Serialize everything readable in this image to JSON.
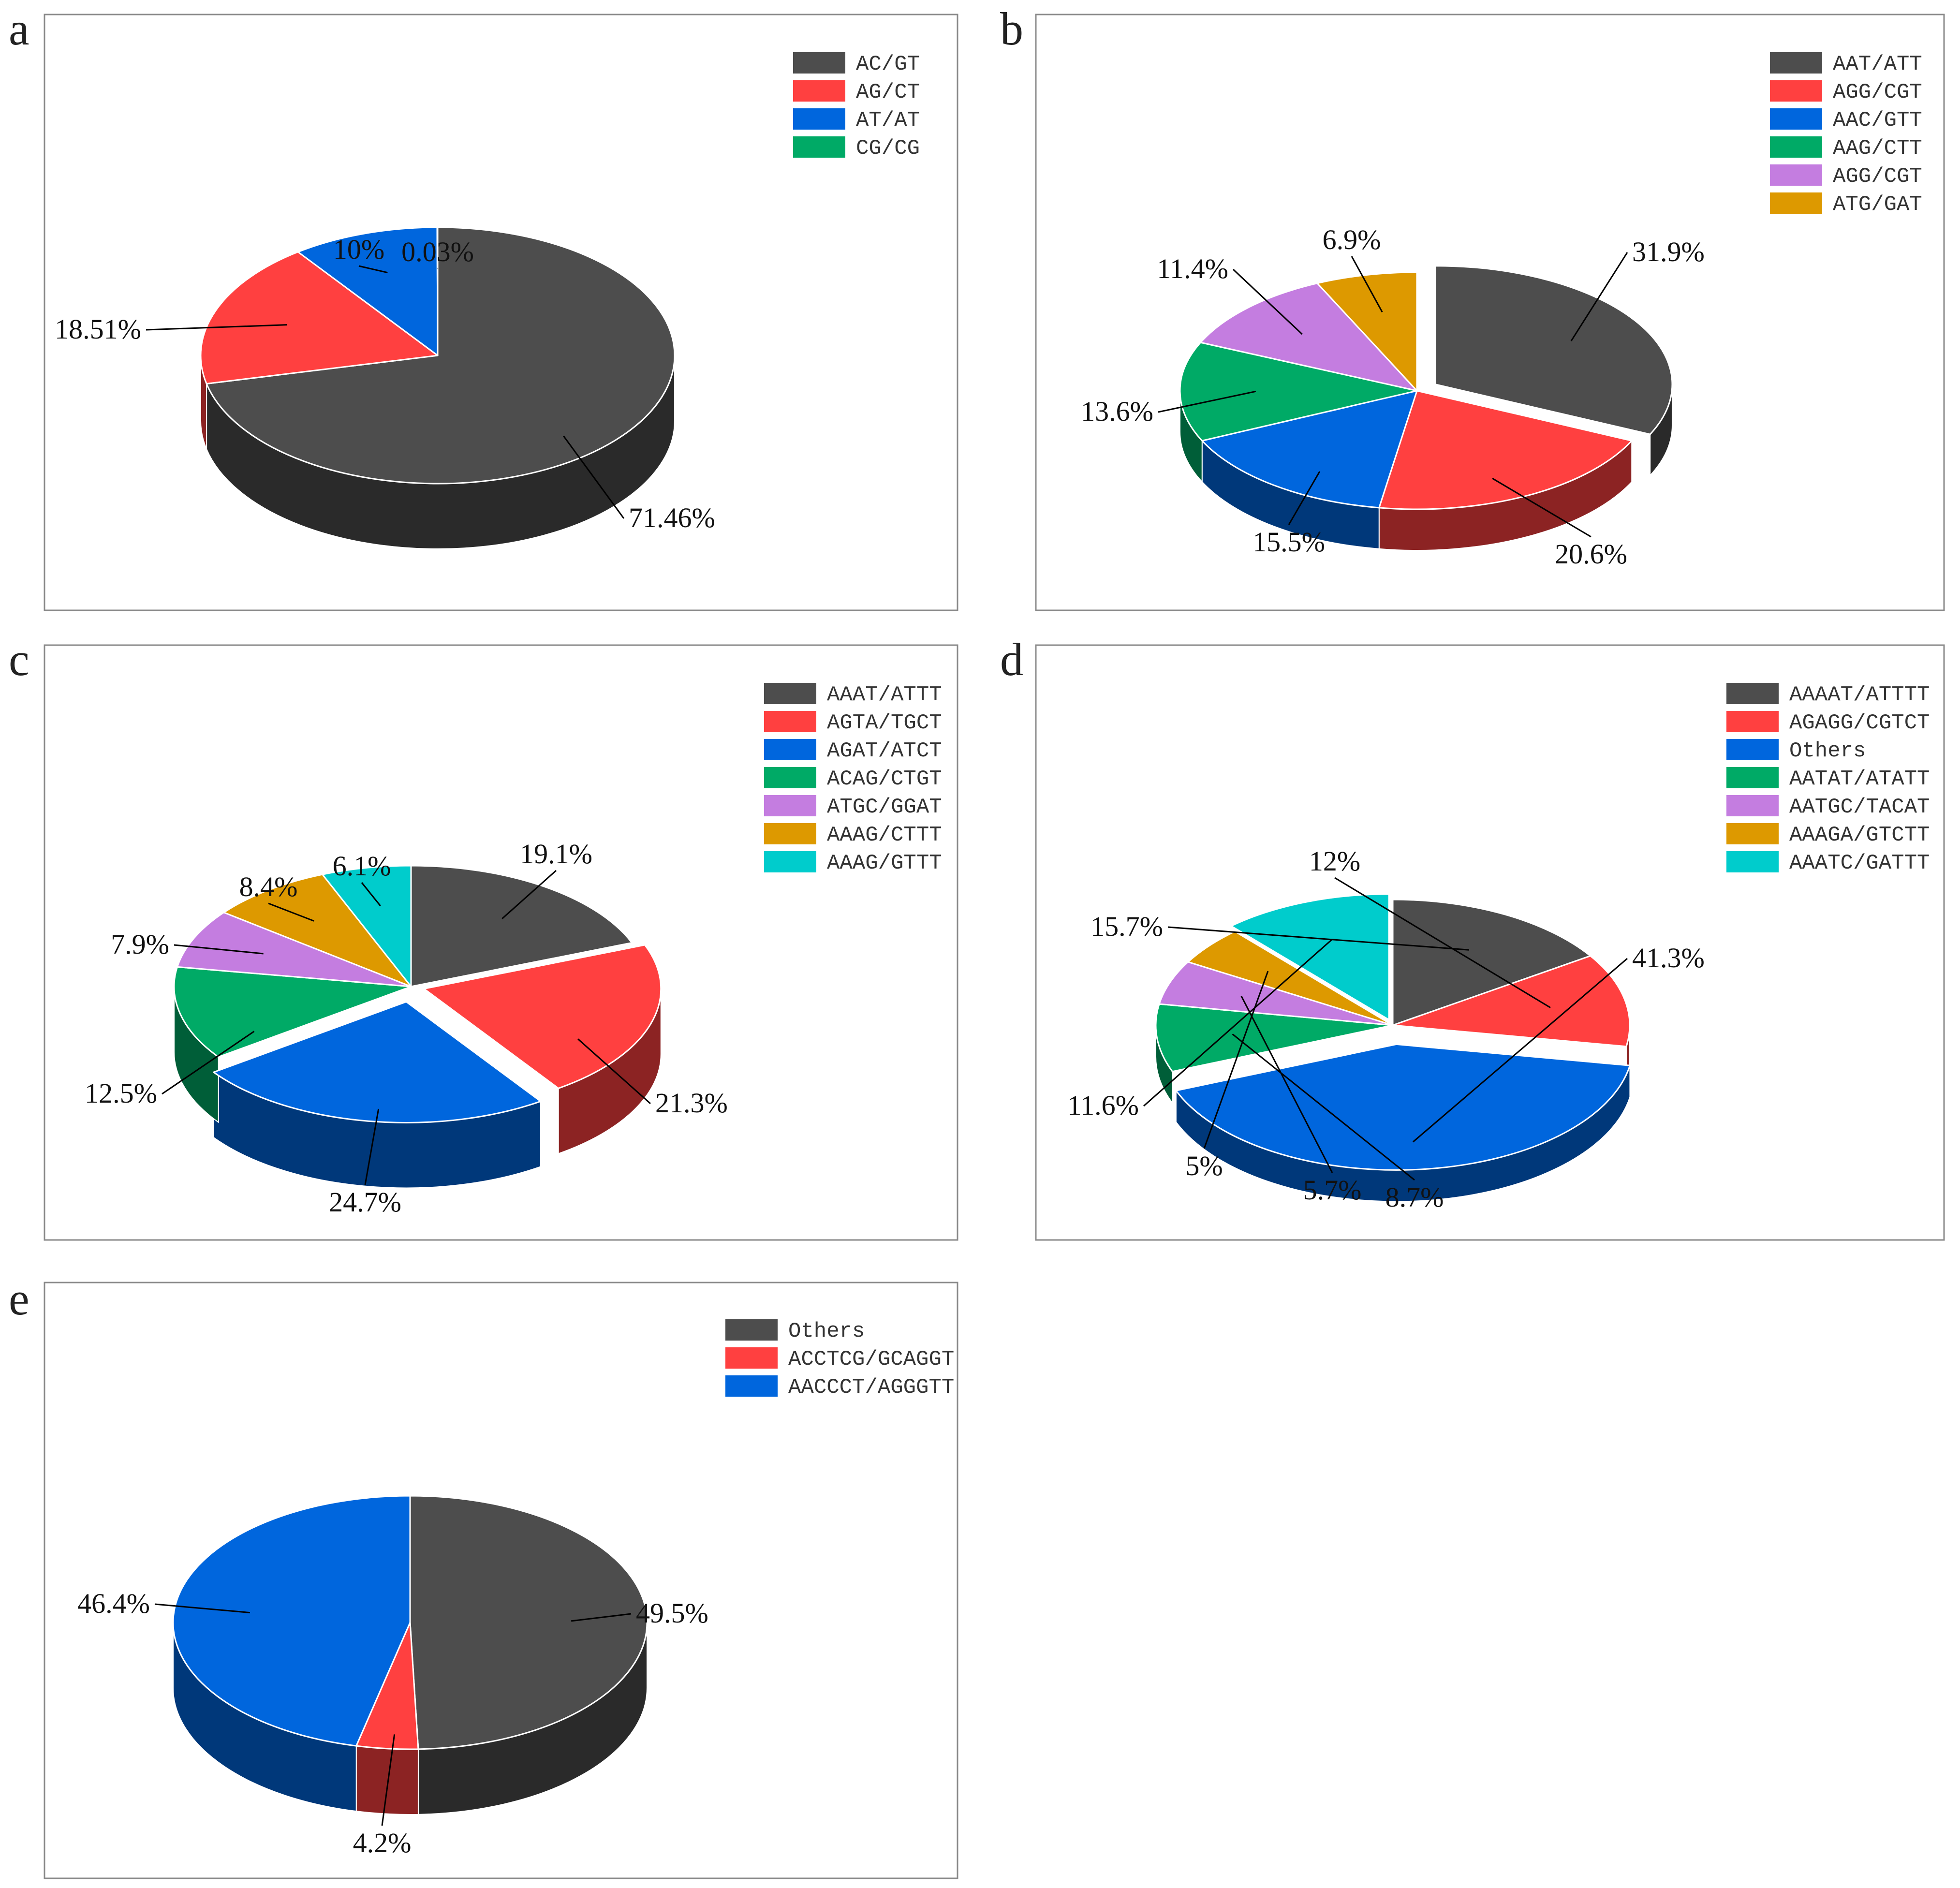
{
  "chart_data": [
    {
      "panel": "a",
      "type": "pie",
      "categories": [
        "AC/GT",
        "AG/CT",
        "AT/AT",
        "CG/CG"
      ],
      "values": [
        71.46,
        18.51,
        10,
        0.03
      ],
      "labels": [
        "71.46%",
        "18.51%",
        "10%",
        "0.03%"
      ],
      "colors": [
        "#4d4d4d",
        "#ff4040",
        "#0066dd",
        "#00aa66"
      ],
      "legend": "top-right"
    },
    {
      "panel": "b",
      "type": "pie",
      "categories": [
        "AAT/ATT",
        "AGG/CGT",
        "AAC/GTT",
        "AAG/CTT",
        "AGG/CGT",
        "ATG/GAT"
      ],
      "values": [
        31.9,
        20.6,
        15.5,
        13.6,
        11.4,
        6.9
      ],
      "labels": [
        "31.9%",
        "20.6%",
        "15.5%",
        "13.6%",
        "11.4%",
        "6.9%"
      ],
      "colors": [
        "#4d4d4d",
        "#ff4040",
        "#0066dd",
        "#00aa66",
        "#c47de0",
        "#dd9900"
      ],
      "legend": "top-right"
    },
    {
      "panel": "c",
      "type": "pie",
      "categories": [
        "AAAT/ATTT",
        "AGTA/TGCT",
        "AGAT/ATCT",
        "ACAG/CTGT",
        "ATGC/GGAT",
        "AAAG/CTTT",
        "AAAG/GTTT"
      ],
      "values": [
        19.1,
        21.3,
        24.7,
        12.5,
        7.9,
        8.4,
        6.1
      ],
      "labels": [
        "19.1%",
        "21.3%",
        "24.7%",
        "12.5%",
        "7.9%",
        "8.4%",
        "6.1%"
      ],
      "colors": [
        "#4d4d4d",
        "#ff4040",
        "#0066dd",
        "#00aa66",
        "#c47de0",
        "#dd9900",
        "#00cccc"
      ],
      "legend": "top-right"
    },
    {
      "panel": "d",
      "type": "pie",
      "categories": [
        "AAAAT/ATTTT",
        "AGAGG/CGTCT",
        "Others",
        "AATAT/ATATT",
        "AATGC/TACAT",
        "AAAGA/GTCTT",
        "AAATC/GATTT"
      ],
      "values": [
        15.7,
        12,
        41.3,
        8.7,
        5.7,
        5,
        11.6
      ],
      "labels": [
        "15.7%",
        "12%",
        "41.3%",
        "8.7%",
        "5.7%",
        "5%",
        "11.6%"
      ],
      "colors": [
        "#4d4d4d",
        "#ff4040",
        "#0066dd",
        "#00aa66",
        "#c47de0",
        "#dd9900",
        "#00cccc"
      ],
      "legend": "top-right"
    },
    {
      "panel": "e",
      "type": "pie",
      "categories": [
        "Others",
        "ACCTCG/GCAGGT",
        "AACCCT/AGGGTT"
      ],
      "values": [
        49.5,
        4.2,
        46.4
      ],
      "labels": [
        "49.5%",
        "4.2%",
        "46.4%"
      ],
      "colors": [
        "#4d4d4d",
        "#ff4040",
        "#0066dd"
      ],
      "legend": "top-right"
    }
  ]
}
